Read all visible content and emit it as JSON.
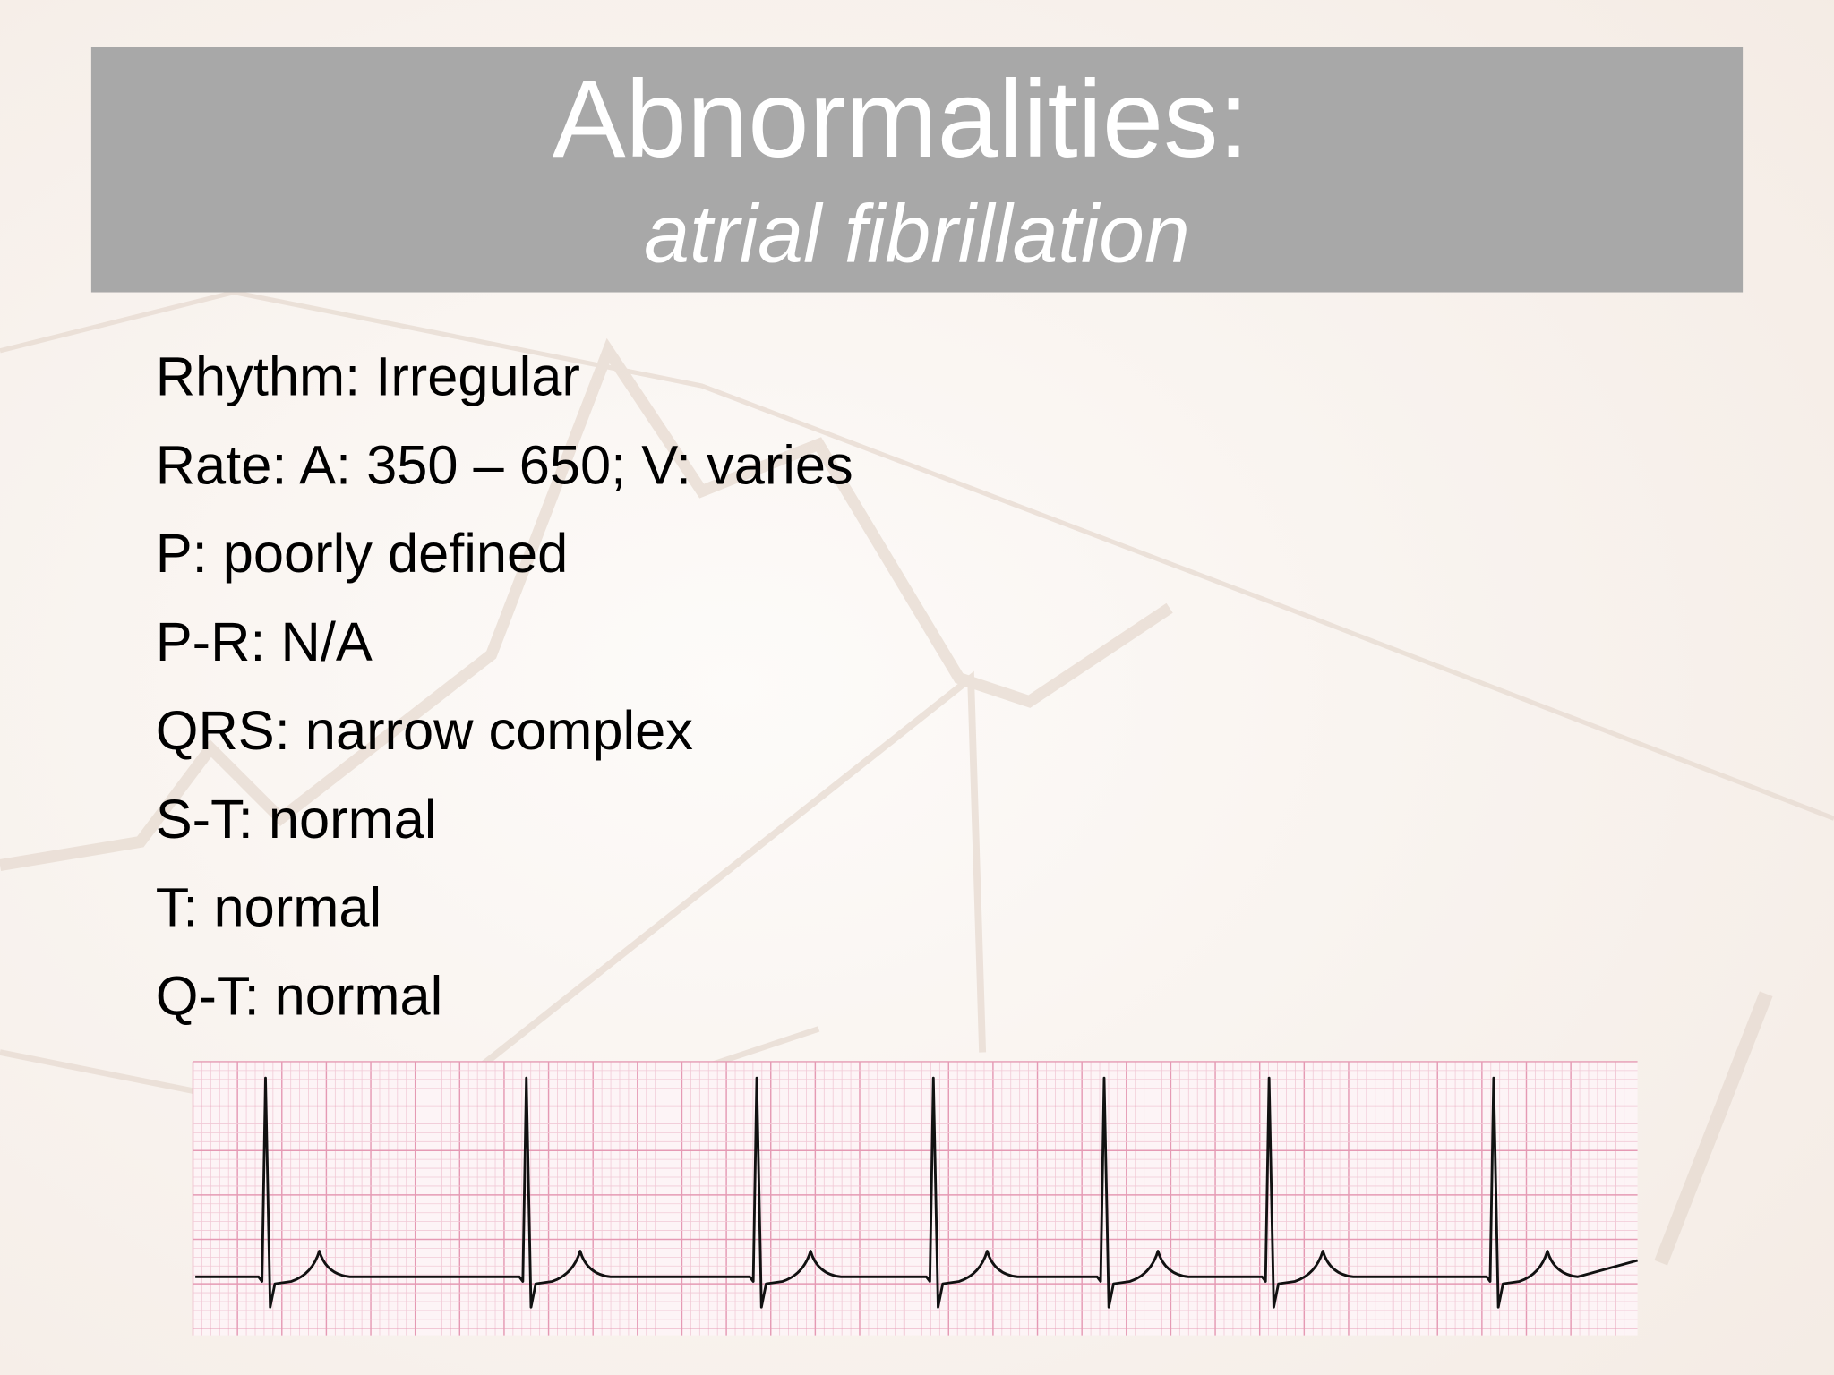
{
  "header": {
    "title": "Abnormalities:",
    "subtitle": "atrial fibrillation"
  },
  "body": {
    "lines": [
      "Rhythm: Irregular",
      "Rate: A: 350 – 650; V: varies",
      "P: poorly defined",
      "P-R: N/A",
      "QRS: narrow complex",
      "S-T: normal",
      "T: normal",
      "Q-T: normal"
    ]
  }
}
